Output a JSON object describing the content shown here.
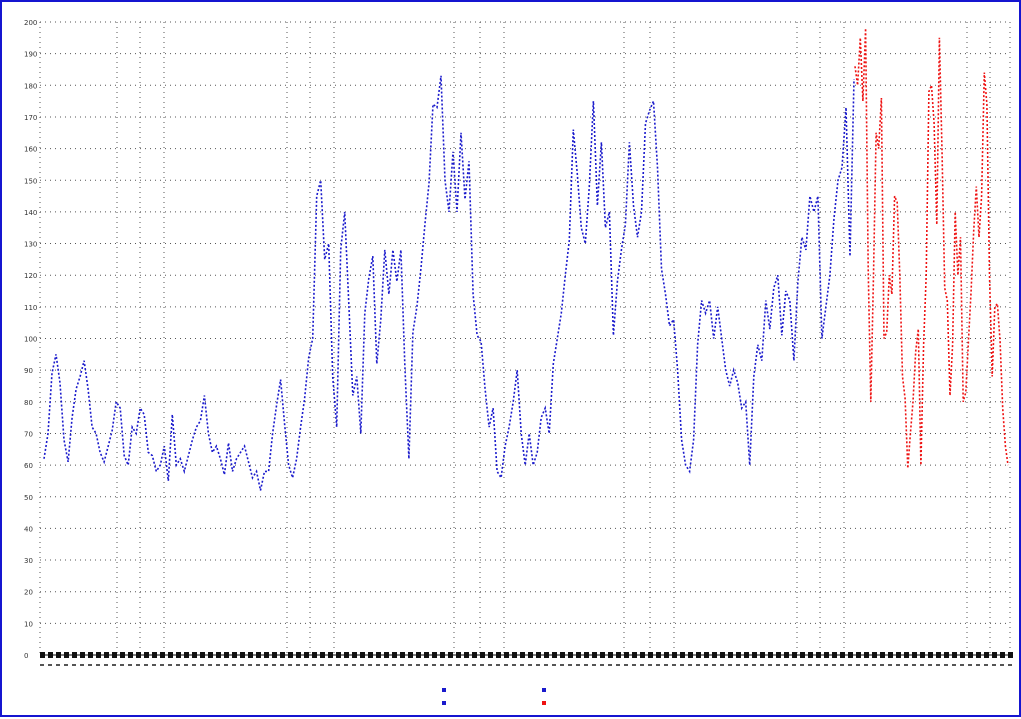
{
  "colors": {
    "frame": "#1515d0",
    "observed": "#1a1acc",
    "forecast": "#ee1111",
    "grid": "#555555"
  },
  "chart_data": {
    "type": "line",
    "title": "",
    "xlabel": "",
    "ylabel": "",
    "ylim": [
      0,
      200
    ],
    "y_ticks": [
      "0",
      "10",
      "20",
      "30",
      "40",
      "50",
      "60",
      "70",
      "80",
      "90",
      "100",
      "110",
      "120",
      "130",
      "140",
      "150",
      "160",
      "170",
      "180",
      "190",
      "200"
    ],
    "grid": true,
    "legend_position": "bottom-center",
    "series": [
      {
        "color": "#1a1acc",
        "values": [
          62,
          70,
          89,
          95,
          86,
          68,
          61,
          75,
          84,
          88,
          93,
          84,
          72,
          70,
          64,
          61,
          66,
          71,
          80,
          78,
          63,
          60,
          72,
          70,
          78,
          76,
          64,
          63,
          58,
          60,
          66,
          55,
          76,
          60,
          62,
          58,
          63,
          68,
          72,
          74,
          82,
          70,
          64,
          66,
          62,
          57,
          67,
          58,
          62,
          64,
          66,
          61,
          56,
          58,
          52,
          58,
          58,
          70,
          79,
          87,
          73,
          60,
          56,
          62,
          72,
          81,
          94,
          100,
          145,
          150,
          125,
          130,
          88,
          72,
          128,
          140,
          111,
          82,
          88,
          70,
          108,
          119,
          126,
          92,
          106,
          128,
          114,
          128,
          118,
          128,
          91,
          62,
          102,
          110,
          122,
          136,
          149,
          174,
          173,
          183,
          150,
          140,
          159,
          140,
          165,
          144,
          156,
          114,
          101,
          99,
          84,
          72,
          78,
          58,
          56,
          66,
          72,
          80,
          90,
          70,
          60,
          70,
          60,
          64,
          75,
          78,
          70,
          92,
          100,
          108,
          120,
          131,
          166,
          152,
          135,
          130,
          148,
          175,
          142,
          162,
          135,
          140,
          101,
          118,
          128,
          136,
          162,
          142,
          132,
          140,
          168,
          172,
          175,
          154,
          122,
          114,
          104,
          106,
          90,
          68,
          60,
          58,
          68,
          98,
          112,
          108,
          112,
          100,
          110,
          100,
          90,
          85,
          90,
          86,
          78,
          80,
          60,
          88,
          98,
          93,
          112,
          103,
          116,
          120,
          101,
          115,
          112,
          93,
          118,
          132,
          128,
          145,
          140,
          145,
          100,
          110,
          120,
          138,
          150,
          154,
          173,
          126,
          182
        ]
      },
      {
        "color": "#ee1111",
        "values": [
          186,
          180,
          195,
          175,
          198,
          122,
          80,
          120,
          165,
          160,
          176,
          100,
          102,
          120,
          114,
          145,
          143,
          120,
          88,
          81,
          59,
          70,
          80,
          96,
          103,
          60,
          98,
          120,
          178,
          180,
          168,
          136,
          195,
          158,
          116,
          112,
          82,
          98,
          140,
          120,
          132,
          80,
          83,
          99,
          115,
          134,
          148,
          132,
          145,
          184,
          174,
          120,
          88,
          110,
          111,
          99,
          78,
          66,
          60
        ]
      }
    ]
  },
  "legend": {
    "entries": [
      {
        "label": "",
        "color": "#1a1acc"
      },
      {
        "label": "",
        "color": "#1a1acc"
      },
      {
        "label": "",
        "color": "#1a1acc"
      },
      {
        "label": "",
        "color": "#ee1111"
      }
    ]
  }
}
